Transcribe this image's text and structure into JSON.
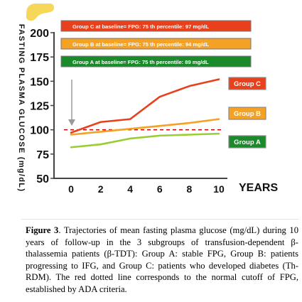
{
  "chart_data": {
    "type": "line",
    "x": [
      0,
      2,
      4,
      6,
      8,
      10
    ],
    "xlim": [
      0,
      10
    ],
    "ylim": [
      50,
      200
    ],
    "y_ticks": [
      50,
      75,
      100,
      125,
      150,
      175,
      200
    ],
    "y_tick_labels": [
      "50",
      "75",
      "100",
      "125",
      "150",
      "175",
      "200"
    ],
    "x_tick_labels": [
      "0",
      "2",
      "4",
      "6",
      "8",
      "10"
    ],
    "xlabel": "YEARS",
    "ylabel": "FASTING PLASMA GLUCOSE (mg/dL)",
    "grid": false,
    "series": [
      {
        "name": "Group C",
        "color": "#e8401c",
        "values": [
          97,
          108,
          111,
          134,
          145,
          152
        ]
      },
      {
        "name": "Group B",
        "color": "#f5a124",
        "values": [
          95,
          98,
          101,
          104,
          107,
          111
        ]
      },
      {
        "name": "Group A",
        "color": "#9acd32",
        "values": [
          82,
          85,
          91,
          94,
          95,
          96
        ]
      }
    ],
    "reference_line": {
      "value": 100,
      "color": "#cc0000",
      "style": "dotted"
    },
    "baseline_boxes": [
      {
        "text": "Group C at baseline= FPG: 75 th percentile: 97 mg/dL",
        "color": "#e8401c"
      },
      {
        "text": "Group B at baseline= FPG: 75 th percentile: 94 mg/dL",
        "color": "#f5a124"
      },
      {
        "text": "Group A at baseline= FPG: 75 th percentile: 89 mg/dL",
        "color": "#1a8a2a"
      }
    ],
    "legend_placement": "right"
  },
  "caption": {
    "label": "Figure 3",
    "text": ". Trajectories of mean fasting plasma glucose (mg/dL) during 10 years of follow-up in the 3 subgroups of transfusion-dependent β-thalassemia patients (β-TDT): Group A: stable FPG, Group B: patients progressing to IFG, and Group C: patients who developed diabetes (Th-RDM). The red dotted line corresponds to the normal cutoff of FPG, established by ADA criteria."
  },
  "colors": {
    "tab_shape": "#f6d75a",
    "arrow": "#9a9a9a"
  }
}
